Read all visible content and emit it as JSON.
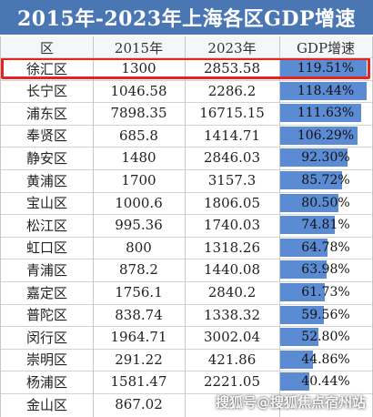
{
  "chart_data": {
    "type": "table",
    "title": "2015年-2023年上海各区GDP增速",
    "columns": [
      "区",
      "2015年",
      "2023年",
      "GDP增速"
    ],
    "rows": [
      {
        "district": "徐汇区",
        "y2015": "1300",
        "y2023": "2853.58",
        "growth": "119.51%",
        "growth_value": 119.51
      },
      {
        "district": "长宁区",
        "y2015": "1046.58",
        "y2023": "2286.2",
        "growth": "118.44%",
        "growth_value": 118.44
      },
      {
        "district": "浦东区",
        "y2015": "7898.35",
        "y2023": "16715.15",
        "growth": "111.63%",
        "growth_value": 111.63
      },
      {
        "district": "奉贤区",
        "y2015": "685.8",
        "y2023": "1414.71",
        "growth": "106.29%",
        "growth_value": 106.29
      },
      {
        "district": "静安区",
        "y2015": "1480",
        "y2023": "2846.03",
        "growth": "92.30%",
        "growth_value": 92.3
      },
      {
        "district": "黄浦区",
        "y2015": "1700",
        "y2023": "3157.3",
        "growth": "85.72%",
        "growth_value": 85.72
      },
      {
        "district": "宝山区",
        "y2015": "1000.6",
        "y2023": "1806.05",
        "growth": "80.50%",
        "growth_value": 80.5
      },
      {
        "district": "松江区",
        "y2015": "995.36",
        "y2023": "1740.03",
        "growth": "74.81%",
        "growth_value": 74.81
      },
      {
        "district": "虹口区",
        "y2015": "800",
        "y2023": "1318.26",
        "growth": "64.78%",
        "growth_value": 64.78
      },
      {
        "district": "青浦区",
        "y2015": "878.2",
        "y2023": "1440.08",
        "growth": "63.98%",
        "growth_value": 63.98
      },
      {
        "district": "嘉定区",
        "y2015": "1756.1",
        "y2023": "2840.2",
        "growth": "61.73%",
        "growth_value": 61.73
      },
      {
        "district": "普陀区",
        "y2015": "838.74",
        "y2023": "1338.32",
        "growth": "59.56%",
        "growth_value": 59.56
      },
      {
        "district": "闵行区",
        "y2015": "1964.71",
        "y2023": "3002.04",
        "growth": "52.80%",
        "growth_value": 52.8
      },
      {
        "district": "崇明区",
        "y2015": "291.22",
        "y2023": "421.86",
        "growth": "44.86%",
        "growth_value": 44.86
      },
      {
        "district": "杨浦区",
        "y2015": "1581.47",
        "y2023": "2221.05",
        "growth": "40.44%",
        "growth_value": 40.44
      },
      {
        "district": "金山区",
        "y2015": "867.02",
        "y2023": "",
        "growth": "",
        "growth_value": null
      }
    ],
    "highlighted_row": "徐汇区",
    "bar_scale_max": 124
  },
  "colors": {
    "title_bg": "#4a77b4",
    "bar": "#5b8bd3",
    "highlight_border": "#e8231e"
  },
  "watermark": "搜狐号@搜狐焦点宿州站"
}
